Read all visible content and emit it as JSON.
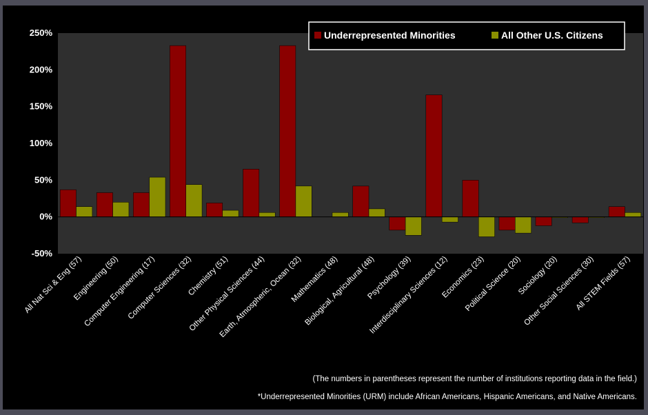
{
  "colors": {
    "page_background": "#4c4c58",
    "panel_background": "#000000",
    "plot_background": "#2f2f2f",
    "urm_bar": "#8b0000",
    "other_bar": "#8b8f00",
    "text": "#ffffff"
  },
  "chart_data": {
    "type": "bar",
    "categories": [
      "All Nat Sci & Eng (57)",
      "Engineering (50)",
      "Computer Engineering (17)",
      "Computer Sciences (32)",
      "Chemistry (51)",
      "Other Physical Sciences (44)",
      "Earth, Atmospheric, Ocean (32)",
      "Mathematics (48)",
      "Biological, Agricultural (48)",
      "Psychology (39)",
      "Interdisciplinary Sciences (12)",
      "Economics (23)",
      "Political Science (20)",
      "Sociology (20)",
      "Other Social Sciences (30)",
      "All STEM Fields (57)"
    ],
    "series": [
      {
        "name": "Underrepresented Minorities",
        "color": "#8b0000",
        "values": [
          37,
          33,
          33,
          233,
          19,
          65,
          233,
          0,
          42,
          -18,
          166,
          50,
          -18,
          -12,
          -8,
          14
        ]
      },
      {
        "name": "All Other U.S. Citizens",
        "color": "#8b8f00",
        "values": [
          14,
          20,
          54,
          44,
          9,
          6,
          42,
          6,
          11,
          -25,
          -7,
          -27,
          -22,
          -1,
          -1,
          6
        ]
      }
    ],
    "yticks": [
      "250%",
      "200%",
      "150%",
      "100%",
      "50%",
      "0%",
      "-50%"
    ],
    "ylim": [
      -50,
      250
    ],
    "grid": false,
    "legend_position": "top-right"
  },
  "notes": {
    "line1": "(The numbers in parentheses represent the number of institutions reporting data in the field.)",
    "line2": "*Underrepresented Minorities (URM) include African Americans, Hispanic Americans, and Native Americans."
  }
}
